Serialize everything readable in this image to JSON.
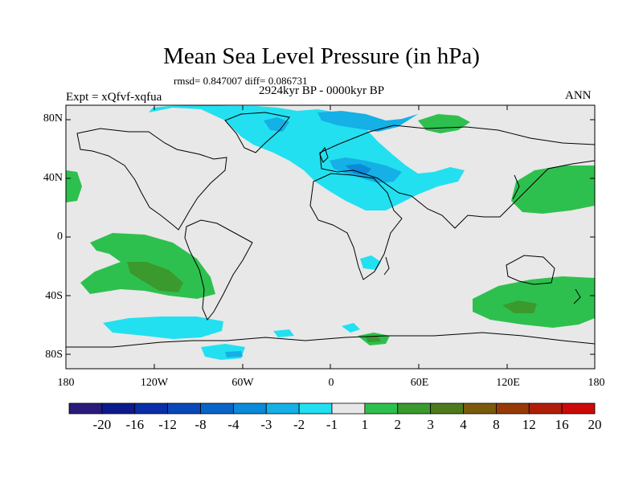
{
  "title": "Mean Sea Level Pressure (in hPa)",
  "stats": "rmsd= 0.847007 diff= 0.086731",
  "period": "2924kyr BP - 0000kyr BP",
  "experiment": "Expt = xQfvf-xqfua",
  "season": "ANN",
  "lat_ticks": [
    "80N",
    "40N",
    "0",
    "40S",
    "80S"
  ],
  "lon_ticks": [
    "180",
    "120W",
    "60W",
    "0",
    "60E",
    "120E",
    "180"
  ],
  "colorbar": {
    "labels": [
      "-20",
      "-16",
      "-12",
      "-8",
      "-4",
      "-3",
      "-2",
      "-1",
      "1",
      "2",
      "3",
      "4",
      "8",
      "12",
      "16",
      "20"
    ],
    "colors": [
      "#2a1a7a",
      "#0d1a8c",
      "#0a2ea8",
      "#0a48b8",
      "#0a64c8",
      "#0a8ad8",
      "#14b0e6",
      "#22e0f0",
      "#e8e8e8",
      "#2ec04e",
      "#3a9a2e",
      "#4e7a1e",
      "#7a5a0e",
      "#963a0a",
      "#b01e0a",
      "#cc0a0a"
    ]
  },
  "colors": {
    "background_field": "#e8e8e8",
    "negative_light": "#22e0f0",
    "negative_mid": "#14b0e6",
    "negative_dark": "#0a8ad8",
    "positive_light": "#2ec04e",
    "positive_mid": "#3a9a2e",
    "positive_dark": "#4e7a1e"
  }
}
